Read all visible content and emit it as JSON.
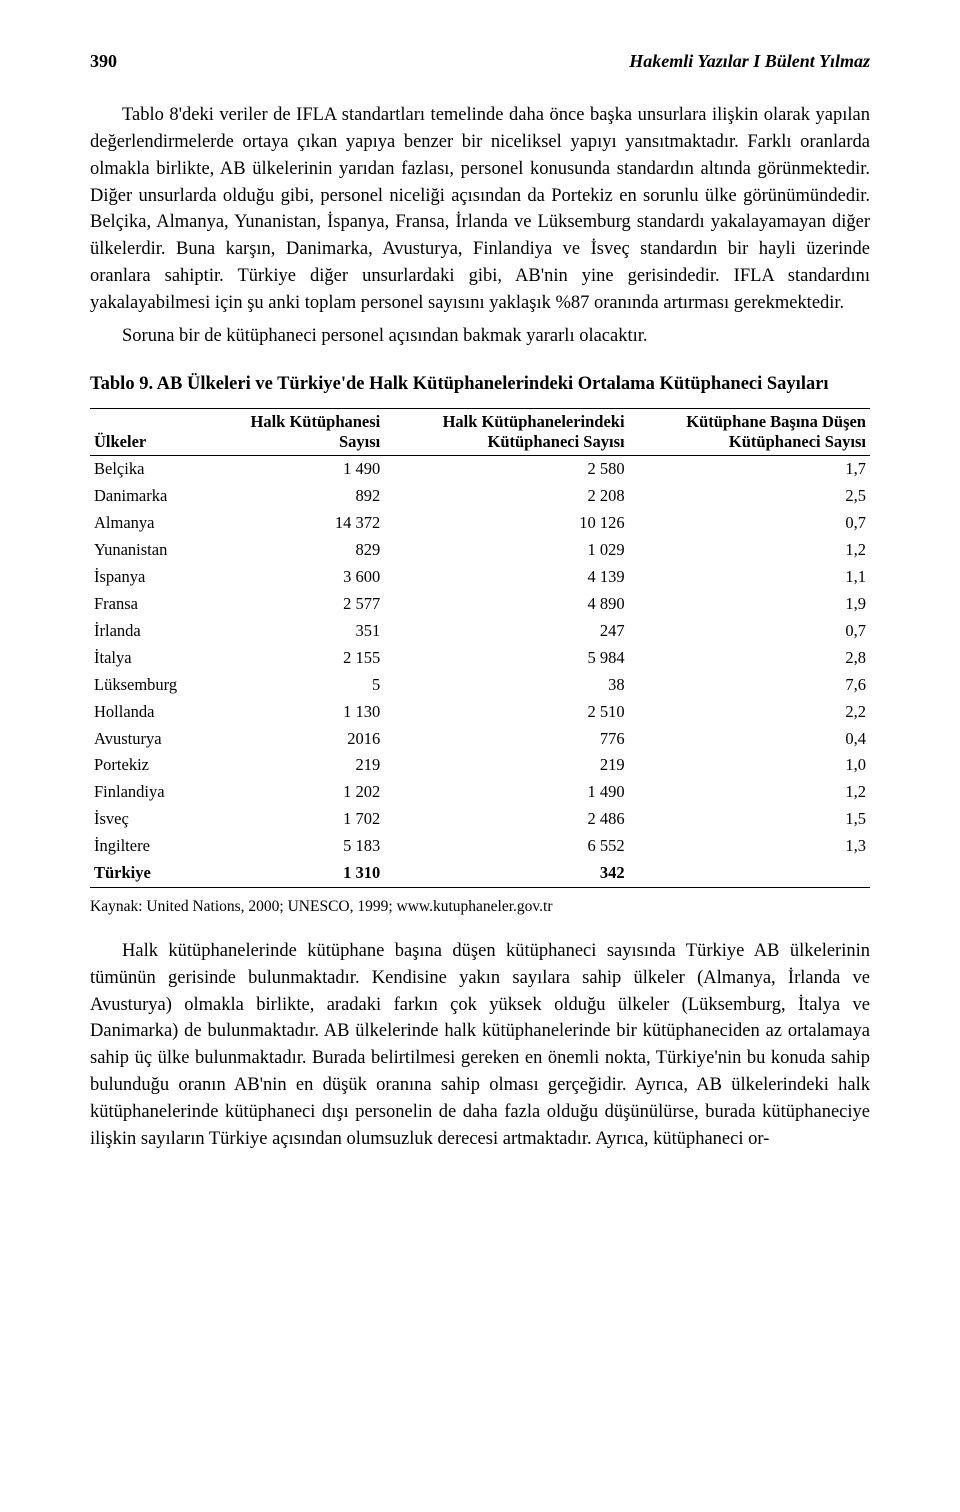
{
  "header": {
    "page_number": "390",
    "running_title": "Hakemli Yazılar I Bülent Yılmaz"
  },
  "paragraphs": {
    "p1": "Tablo 8'deki veriler de IFLA standartları temelinde daha önce başka unsurlara ilişkin olarak yapılan değerlendirmelerde ortaya çıkan yapıya benzer bir niceliksel yapıyı yansıtmaktadır. Farklı oranlarda olmakla birlikte, AB ülkelerinin yarıdan fazlası, personel konusunda standardın altında görünmektedir. Diğer unsurlarda olduğu gibi, personel niceliği açısından da Portekiz en sorunlu ülke görünümündedir. Belçika, Almanya, Yunanistan, İspanya, Fransa, İrlanda ve Lüksemburg standardı yakalayamayan diğer ülkelerdir. Buna karşın, Danimarka, Avusturya, Finlandiya ve İsveç standardın bir hayli üzerinde oranlara sahiptir. Türkiye diğer unsurlardaki gibi, AB'nin yine gerisindedir. IFLA standardını yakalayabilmesi için şu anki toplam personel sayısını yaklaşık %87 oranında artırması gerekmektedir.",
    "p2": "Soruna bir de kütüphaneci personel açısından bakmak yararlı olacaktır.",
    "p3": "Halk kütüphanelerinde kütüphane başına düşen kütüphaneci sayısında Türkiye AB ülkelerinin tümünün gerisinde bulunmaktadır. Kendisine yakın sayılara sahip ülkeler (Almanya, İrlanda ve Avusturya) olmakla birlikte, aradaki farkın çok yüksek olduğu ülkeler (Lüksemburg, İtalya ve Danimarka) de bulunmaktadır. AB ülkelerinde halk kütüphanelerinde bir kütüphaneciden az ortalamaya sahip üç ülke bulunmaktadır. Burada belirtilmesi gereken en önemli nokta, Türkiye'nin bu konuda sahip bulunduğu oranın AB'nin en düşük oranına sahip olması gerçeğidir. Ayrıca, AB ülkelerindeki halk kütüphanelerinde kütüphaneci dışı personelin de daha fazla olduğu düşünülürse, burada kütüphaneciye ilişkin sayıların Türkiye açısından olumsuzluk derecesi artmaktadır. Ayrıca, kütüphaneci or-"
  },
  "table": {
    "caption_label": "Tablo 9.",
    "caption_text": " AB Ülkeleri ve Türkiye'de Halk Kütüphanelerindeki Ortalama Kütüphaneci Sayıları",
    "columns": {
      "c0_l1": "",
      "c0_l2": "Ülkeler",
      "c1_l1": "Halk Kütüphanesi",
      "c1_l2": "Sayısı",
      "c2_l1": "Halk Kütüphanelerindeki",
      "c2_l2": "Kütüphaneci Sayısı",
      "c3_l1": "Kütüphane Başına Düşen",
      "c3_l2": "Kütüphaneci Sayısı"
    },
    "rows": [
      {
        "country": "Belçika",
        "libs": "1 490",
        "librarians": "2 580",
        "ratio": "1,7"
      },
      {
        "country": "Danimarka",
        "libs": "892",
        "librarians": "2 208",
        "ratio": "2,5"
      },
      {
        "country": "Almanya",
        "libs": "14 372",
        "librarians": "10 126",
        "ratio": "0,7"
      },
      {
        "country": "Yunanistan",
        "libs": "829",
        "librarians": "1 029",
        "ratio": "1,2"
      },
      {
        "country": "İspanya",
        "libs": "3 600",
        "librarians": "4 139",
        "ratio": "1,1"
      },
      {
        "country": "Fransa",
        "libs": "2 577",
        "librarians": "4 890",
        "ratio": "1,9"
      },
      {
        "country": "İrlanda",
        "libs": "351",
        "librarians": "247",
        "ratio": "0,7"
      },
      {
        "country": "İtalya",
        "libs": "2 155",
        "librarians": "5 984",
        "ratio": "2,8"
      },
      {
        "country": "Lüksemburg",
        "libs": "5",
        "librarians": "38",
        "ratio": "7,6"
      },
      {
        "country": "Hollanda",
        "libs": "1 130",
        "librarians": "2 510",
        "ratio": "2,2"
      },
      {
        "country": "Avusturya",
        "libs": "2016",
        "librarians": "776",
        "ratio": "0,4"
      },
      {
        "country": "Portekiz",
        "libs": "219",
        "librarians": "219",
        "ratio": "1,0"
      },
      {
        "country": "Finlandiya",
        "libs": "1 202",
        "librarians": "1 490",
        "ratio": "1,2"
      },
      {
        "country": "İsveç",
        "libs": "1 702",
        "librarians": "2 486",
        "ratio": "1,5"
      },
      {
        "country": "İngiltere",
        "libs": "5 183",
        "librarians": "6 552",
        "ratio": "1,3"
      },
      {
        "country": "Türkiye",
        "libs": "1 310",
        "librarians": "342",
        "ratio": ""
      }
    ],
    "source": "Kaynak: United Nations, 2000; UNESCO, 1999; www.kutuphaneler.gov.tr"
  }
}
